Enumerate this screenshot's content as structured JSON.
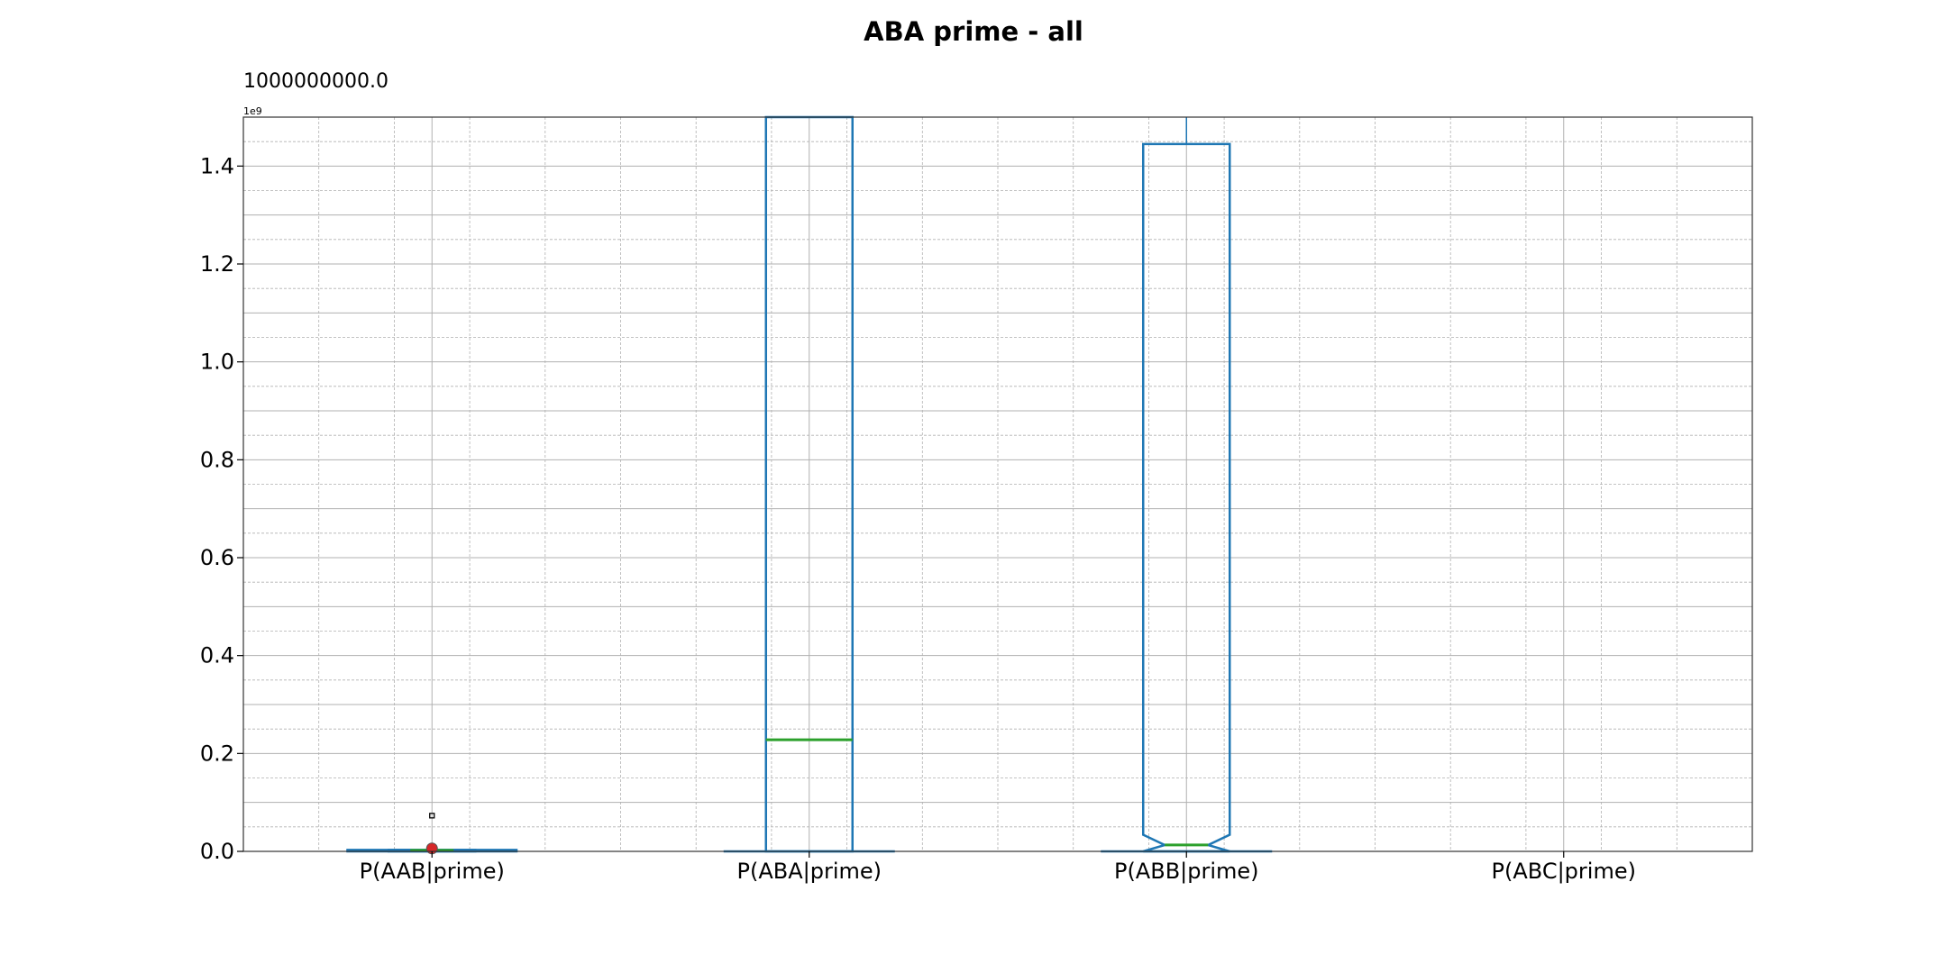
{
  "chart_data": {
    "type": "boxplot",
    "title": "ABA prime - all",
    "annotation": "1000000000.0",
    "offset_label": "1e9",
    "xlabel": "",
    "ylabel": "",
    "ylim": [
      0,
      1.5
    ],
    "y_ticks": [
      0.0,
      0.2,
      0.4,
      0.6,
      0.8,
      1.0,
      1.2,
      1.4
    ],
    "y_tick_labels": [
      "0.0",
      "0.2",
      "0.4",
      "0.6",
      "0.8",
      "1.0",
      "1.2",
      "1.4"
    ],
    "grid": true,
    "categories": [
      "P(AAB|prime)",
      "P(ABA|prime)",
      "P(ABB|prime)",
      "P(ABC|prime)"
    ],
    "boxes": [
      {
        "q1": 0.0,
        "median": 0.002,
        "q3": 0.003,
        "whisker_low": 0.0,
        "whisker_high": 0.003,
        "notched": true,
        "mean": 0.006,
        "outliers": [
          0.073
        ]
      },
      {
        "q1": 0.0,
        "median": 0.228,
        "q3": 1.5,
        "whisker_low": 0.0,
        "whisker_high": 1.5,
        "notched": false,
        "mean": null,
        "outliers": []
      },
      {
        "q1": 0.0,
        "median": 0.013,
        "q3": 1.445,
        "whisker_low": 0.0,
        "whisker_high": 1.5,
        "notched": true,
        "notch_low": 0.0,
        "notch_high": 0.034,
        "mean": null,
        "outliers": []
      },
      {
        "q1": null,
        "median": null,
        "q3": null,
        "whisker_low": null,
        "whisker_high": null,
        "notched": false,
        "mean": null,
        "outliers": []
      }
    ],
    "colors": {
      "box": "#1f77b4",
      "median": "#2ca02c",
      "mean": "#d62728",
      "grid": "#b0b0b0"
    }
  }
}
